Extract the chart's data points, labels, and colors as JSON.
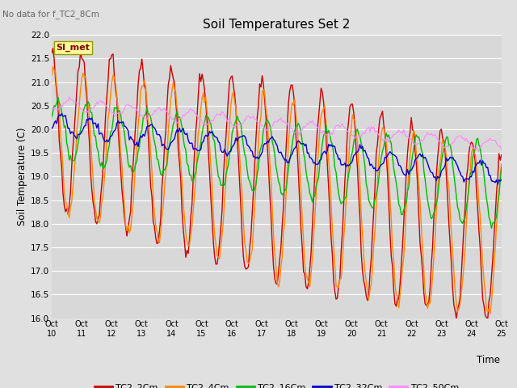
{
  "title": "Soil Temperatures Set 2",
  "xlabel": "Time",
  "ylabel": "Soil Temperature (C)",
  "ylim": [
    16.0,
    22.0
  ],
  "yticks": [
    16.0,
    16.5,
    17.0,
    17.5,
    18.0,
    18.5,
    19.0,
    19.5,
    20.0,
    20.5,
    21.0,
    21.5,
    22.0
  ],
  "xtick_labels": [
    "Oct 10",
    "Oct 11",
    "Oct 12",
    "Oct 13",
    "Oct 14",
    "Oct 15",
    "Oct 16",
    "Oct 17",
    "Oct 18",
    "Oct 19",
    "Oct 20",
    "Oct 21",
    "Oct 22",
    "Oct 23",
    "Oct 24",
    "Oct 25"
  ],
  "annotation_text": "No data for f_TC2_8Cm",
  "si_met_label": "SI_met",
  "fig_bg_color": "#e0e0e0",
  "plot_bg_color": "#d8d8d8",
  "grid_color": "#ffffff",
  "lines": {
    "TC2_2Cm": {
      "color": "#cc0000",
      "lw": 1.0
    },
    "TC2_4Cm": {
      "color": "#ff8800",
      "lw": 1.0
    },
    "TC2_16Cm": {
      "color": "#00bb00",
      "lw": 1.0
    },
    "TC2_32Cm": {
      "color": "#0000cc",
      "lw": 1.0
    },
    "TC2_50Cm": {
      "color": "#ff88ff",
      "lw": 0.8
    }
  },
  "legend_entries": [
    "TC2_2Cm",
    "TC2_4Cm",
    "TC2_16Cm",
    "TC2_32Cm",
    "TC2_50Cm"
  ]
}
